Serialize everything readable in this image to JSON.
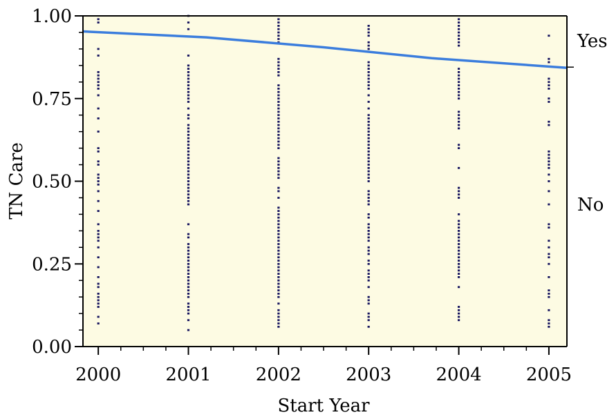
{
  "chart_data": {
    "type": "scatter",
    "title": "",
    "xlabel": "Start Year",
    "ylabel": "TN Care",
    "xlim": [
      1999.83,
      2005.2
    ],
    "ylim": [
      0,
      1
    ],
    "x_ticks": [
      "2000",
      "2001",
      "2002",
      "2003",
      "2004",
      "2005"
    ],
    "x_tick_values": [
      2000,
      2001,
      2002,
      2003,
      2004,
      2005
    ],
    "y_ticks": [
      "0.00",
      "0.25",
      "0.50",
      "0.75",
      "1.00"
    ],
    "y_tick_values": [
      0,
      0.25,
      0.5,
      0.75,
      1.0
    ],
    "right_category_labels": [
      {
        "label": "Yes",
        "value": 0.925
      },
      {
        "label": "No",
        "value": 0.43
      }
    ],
    "colors": {
      "plot_background": "#fdfbe3",
      "points": "#15135e",
      "fit_line": "#3b7ddd"
    },
    "fit_line": {
      "x": [
        1999.83,
        2001.2,
        2002.5,
        2003.7,
        2005.2
      ],
      "y": [
        0.953,
        0.935,
        0.905,
        0.872,
        0.843
      ]
    },
    "series": [
      {
        "x": [
          2000,
          2001,
          2002,
          2003,
          2004,
          2005
        ],
        "y_values_per_x": [
          [
            0.98,
            0.99,
            0.9,
            0.88,
            0.83,
            0.82,
            0.81,
            0.8,
            0.79,
            0.78,
            0.76,
            0.72,
            0.69,
            0.65,
            0.6,
            0.59,
            0.56,
            0.55,
            0.52,
            0.51,
            0.5,
            0.49,
            0.47,
            0.44,
            0.41,
            0.37,
            0.35,
            0.34,
            0.33,
            0.32,
            0.3,
            0.27,
            0.24,
            0.21,
            0.19,
            0.18,
            0.16,
            0.15,
            0.14,
            0.13,
            0.12,
            0.09,
            0.07
          ],
          [
            1.0,
            0.98,
            0.96,
            0.88,
            0.85,
            0.84,
            0.83,
            0.82,
            0.81,
            0.8,
            0.79,
            0.78,
            0.77,
            0.76,
            0.75,
            0.74,
            0.72,
            0.7,
            0.69,
            0.67,
            0.66,
            0.65,
            0.64,
            0.63,
            0.62,
            0.61,
            0.6,
            0.59,
            0.58,
            0.57,
            0.56,
            0.55,
            0.54,
            0.53,
            0.52,
            0.51,
            0.5,
            0.49,
            0.48,
            0.47,
            0.46,
            0.45,
            0.44,
            0.43,
            0.37,
            0.34,
            0.33,
            0.31,
            0.3,
            0.29,
            0.28,
            0.27,
            0.26,
            0.25,
            0.24,
            0.23,
            0.22,
            0.21,
            0.2,
            0.19,
            0.18,
            0.17,
            0.16,
            0.15,
            0.13,
            0.12,
            0.11,
            0.1,
            0.08,
            0.05
          ],
          [
            0.99,
            0.98,
            0.97,
            0.96,
            0.95,
            0.94,
            0.93,
            0.92,
            0.87,
            0.86,
            0.85,
            0.84,
            0.83,
            0.82,
            0.79,
            0.78,
            0.77,
            0.76,
            0.75,
            0.74,
            0.73,
            0.72,
            0.71,
            0.7,
            0.69,
            0.68,
            0.67,
            0.66,
            0.65,
            0.64,
            0.63,
            0.62,
            0.61,
            0.6,
            0.57,
            0.56,
            0.55,
            0.54,
            0.53,
            0.52,
            0.51,
            0.48,
            0.47,
            0.45,
            0.42,
            0.41,
            0.4,
            0.39,
            0.38,
            0.37,
            0.36,
            0.35,
            0.34,
            0.33,
            0.32,
            0.31,
            0.3,
            0.29,
            0.28,
            0.27,
            0.26,
            0.25,
            0.24,
            0.23,
            0.22,
            0.21,
            0.2,
            0.19,
            0.18,
            0.17,
            0.16,
            0.15,
            0.13,
            0.11,
            0.1,
            0.09,
            0.08,
            0.07,
            0.06
          ],
          [
            0.97,
            0.96,
            0.95,
            0.94,
            0.92,
            0.91,
            0.9,
            0.86,
            0.85,
            0.84,
            0.83,
            0.82,
            0.81,
            0.8,
            0.79,
            0.78,
            0.76,
            0.74,
            0.72,
            0.7,
            0.69,
            0.68,
            0.67,
            0.66,
            0.65,
            0.64,
            0.63,
            0.62,
            0.61,
            0.6,
            0.59,
            0.58,
            0.57,
            0.56,
            0.55,
            0.54,
            0.53,
            0.52,
            0.51,
            0.5,
            0.47,
            0.46,
            0.45,
            0.44,
            0.43,
            0.4,
            0.39,
            0.37,
            0.36,
            0.35,
            0.34,
            0.33,
            0.32,
            0.3,
            0.29,
            0.28,
            0.26,
            0.25,
            0.23,
            0.22,
            0.21,
            0.2,
            0.18,
            0.15,
            0.14,
            0.13,
            0.1,
            0.09,
            0.08,
            0.06
          ],
          [
            0.99,
            0.98,
            0.97,
            0.96,
            0.95,
            0.94,
            0.93,
            0.92,
            0.91,
            0.84,
            0.83,
            0.82,
            0.81,
            0.8,
            0.79,
            0.78,
            0.77,
            0.76,
            0.75,
            0.71,
            0.7,
            0.69,
            0.68,
            0.67,
            0.66,
            0.61,
            0.6,
            0.54,
            0.48,
            0.47,
            0.46,
            0.45,
            0.4,
            0.38,
            0.37,
            0.36,
            0.35,
            0.34,
            0.33,
            0.32,
            0.31,
            0.3,
            0.29,
            0.28,
            0.27,
            0.26,
            0.25,
            0.24,
            0.23,
            0.22,
            0.21,
            0.18,
            0.12,
            0.11,
            0.1,
            0.09,
            0.08
          ],
          [
            0.94,
            0.87,
            0.86,
            0.81,
            0.8,
            0.79,
            0.78,
            0.75,
            0.74,
            0.68,
            0.67,
            0.59,
            0.58,
            0.57,
            0.56,
            0.55,
            0.54,
            0.52,
            0.5,
            0.47,
            0.43,
            0.37,
            0.36,
            0.32,
            0.3,
            0.28,
            0.27,
            0.25,
            0.21,
            0.17,
            0.16,
            0.15,
            0.11,
            0.08,
            0.07,
            0.06
          ]
        ]
      }
    ]
  }
}
